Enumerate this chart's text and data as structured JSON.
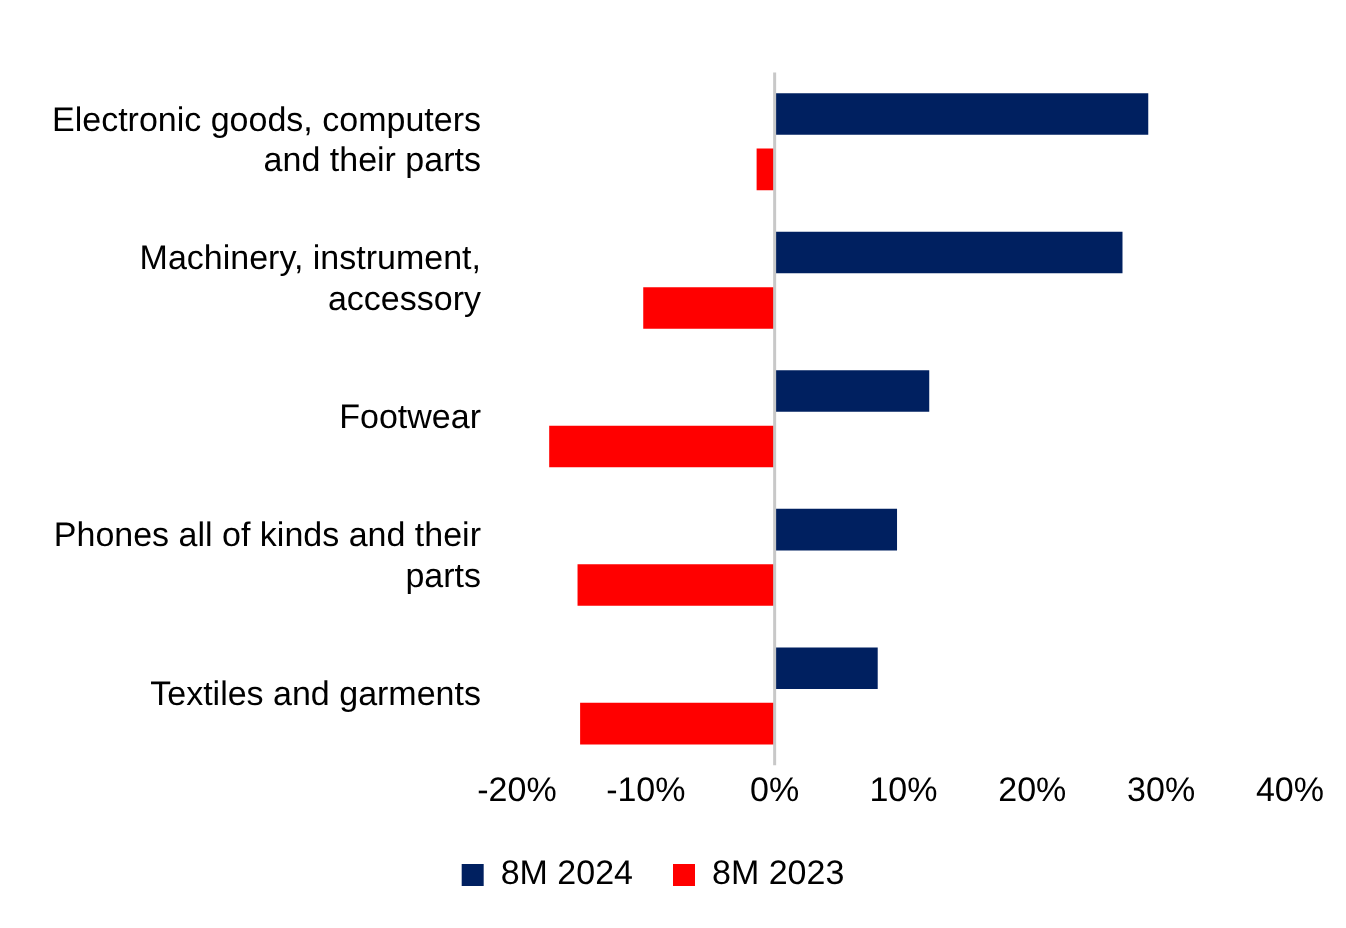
{
  "chart_data": {
    "type": "bar",
    "orientation": "horizontal",
    "categories": [
      "Electronic goods, computers and their parts",
      "Machinery, instrument, accessory",
      "Footwear",
      "Phones all of kinds and their parts",
      "Textiles and garments"
    ],
    "series": [
      {
        "name": "8M 2024",
        "color": "#002060",
        "values": [
          29,
          27,
          12,
          9.5,
          8
        ]
      },
      {
        "name": "8M 2023",
        "color": "#ff0000",
        "values": [
          -1.4,
          -10.2,
          -17.5,
          -15.3,
          -15.1
        ]
      }
    ],
    "xlim": [
      -20,
      40
    ],
    "xticks": [
      {
        "value": -20,
        "label": "-20%"
      },
      {
        "value": -10,
        "label": "-10%"
      },
      {
        "value": 0,
        "label": "0%"
      },
      {
        "value": 10,
        "label": "10%"
      },
      {
        "value": 20,
        "label": "20%"
      },
      {
        "value": 30,
        "label": "30%"
      },
      {
        "value": 40,
        "label": "40%"
      }
    ],
    "ref_lines": [
      {
        "axis": "x",
        "value": 0,
        "color": "#c8c8c8"
      }
    ],
    "legend": "bottom"
  }
}
